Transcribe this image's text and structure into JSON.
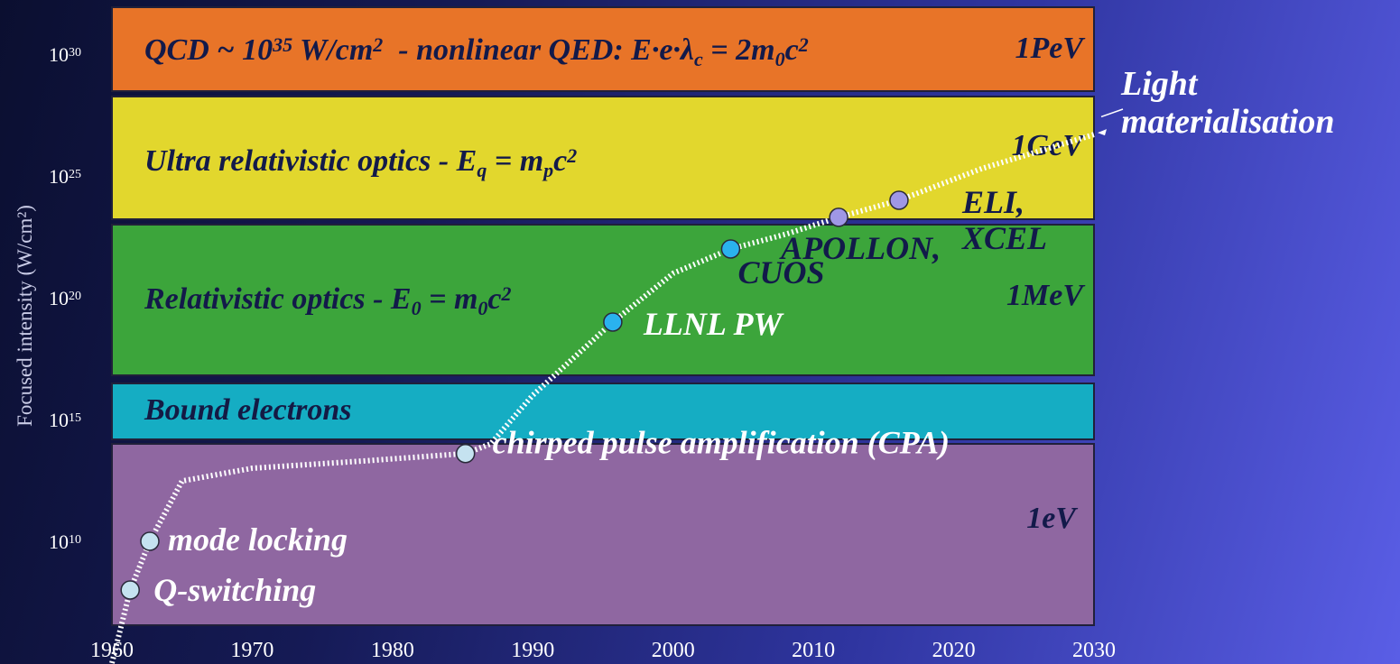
{
  "chart_data": {
    "type": "scatter",
    "ylabel": "Focused intensity (W/cm²)",
    "xlabel": "",
    "xlim": [
      1960,
      2030
    ],
    "ylim": [
      100000.0,
      1e+33
    ],
    "yscale": "log",
    "xticks": [
      "1960",
      "1970",
      "1980",
      "1990",
      "2000",
      "2010",
      "2020",
      "2030"
    ],
    "yticks": [
      {
        "base": "10",
        "exp": "10"
      },
      {
        "base": "10",
        "exp": "15"
      },
      {
        "base": "10",
        "exp": "20"
      },
      {
        "base": "10",
        "exp": "25"
      },
      {
        "base": "10",
        "exp": "30"
      }
    ],
    "bands": [
      {
        "id": "band-ev",
        "color": "#8f67a1",
        "label_right": "1eV"
      },
      {
        "id": "band-bound",
        "color": "#15adc3",
        "label_parts": [
          {
            "t": "Bound electrons"
          }
        ]
      },
      {
        "id": "band-mev",
        "color": "#3ca53b",
        "label_right": "1MeV",
        "label_parts": [
          {
            "t": "Relativistic optics - "
          },
          {
            "t": "E"
          },
          {
            "t": "0",
            "s": "sub"
          },
          {
            "t": " = m"
          },
          {
            "t": "0",
            "s": "sub"
          },
          {
            "t": "c"
          },
          {
            "t": "2",
            "s": "sup"
          }
        ]
      },
      {
        "id": "band-gev",
        "color": "#e2d72d",
        "label_right": "1GeV",
        "label_parts": [
          {
            "t": "Ultra relativistic optics - "
          },
          {
            "t": "E"
          },
          {
            "t": "q",
            "s": "sub"
          },
          {
            "t": " = m"
          },
          {
            "t": "p",
            "s": "sub"
          },
          {
            "t": "c"
          },
          {
            "t": "2",
            "s": "sup"
          }
        ]
      },
      {
        "id": "band-pev",
        "color": "#e87428",
        "label_right": "1PeV",
        "label_parts": [
          {
            "t": "QCD ~ 10"
          },
          {
            "t": "35",
            "s": "sup"
          },
          {
            "t": " W/cm"
          },
          {
            "t": "2",
            "s": "sup"
          },
          {
            "t": "  - nonlinear QED: E·e·λ"
          },
          {
            "t": "c",
            "s": "sub"
          },
          {
            "t": " = 2m"
          },
          {
            "t": "0",
            "s": "sub"
          },
          {
            "t": "c"
          },
          {
            "t": "2",
            "s": "sup"
          }
        ]
      }
    ],
    "trend": [
      {
        "x": 1960,
        "y": 100000.0
      },
      {
        "x": 1961.3,
        "y": 100000000.0
      },
      {
        "x": 1962.7,
        "y": 10000000000.0
      },
      {
        "x": 1965,
        "y": 3000000000000.0
      },
      {
        "x": 1970,
        "y": 10000000000000.0
      },
      {
        "x": 1978,
        "y": 20000000000000.0
      },
      {
        "x": 1985.2,
        "y": 40000000000000.0
      },
      {
        "x": 1987,
        "y": 100000000000000.0
      },
      {
        "x": 1990,
        "y": 1e+16
      },
      {
        "x": 1995.7,
        "y": 1e+19
      },
      {
        "x": 2000,
        "y": 1e+21
      },
      {
        "x": 2004.1,
        "y": 1e+22
      },
      {
        "x": 2008,
        "y": 4e+22
      },
      {
        "x": 2011.8,
        "y": 2e+23
      },
      {
        "x": 2016.1,
        "y": 1e+24
      },
      {
        "x": 2022,
        "y": 2e+25
      },
      {
        "x": 2030,
        "y": 5e+26
      }
    ],
    "points": [
      {
        "x": 1961.3,
        "y": 100000000.0,
        "label": "Q-switching",
        "color": "#c5e2f0"
      },
      {
        "x": 1962.7,
        "y": 10000000000.0,
        "label": "mode locking",
        "color": "#c5e2f0"
      },
      {
        "x": 1985.2,
        "y": 40000000000000.0,
        "label": "chirped pulse amplification (CPA)",
        "color": "#c5e2f0"
      },
      {
        "x": 1995.7,
        "y": 1e+19,
        "label": "LLNL PW",
        "color": "#2ab2ee"
      },
      {
        "x": 2004.1,
        "y": 1e+22,
        "label": "CUOS",
        "color": "#2ab2ee"
      },
      {
        "x": 2011.8,
        "y": 2e+23,
        "label": "APOLLON,",
        "color": "#9f97e6"
      },
      {
        "x": 2016.1,
        "y": 1e+24,
        "label": "ELI,",
        "label2": "XCEL",
        "color": "#9f97e6"
      }
    ]
  },
  "annotation": {
    "line1": "Light",
    "line2": "materialisation"
  }
}
